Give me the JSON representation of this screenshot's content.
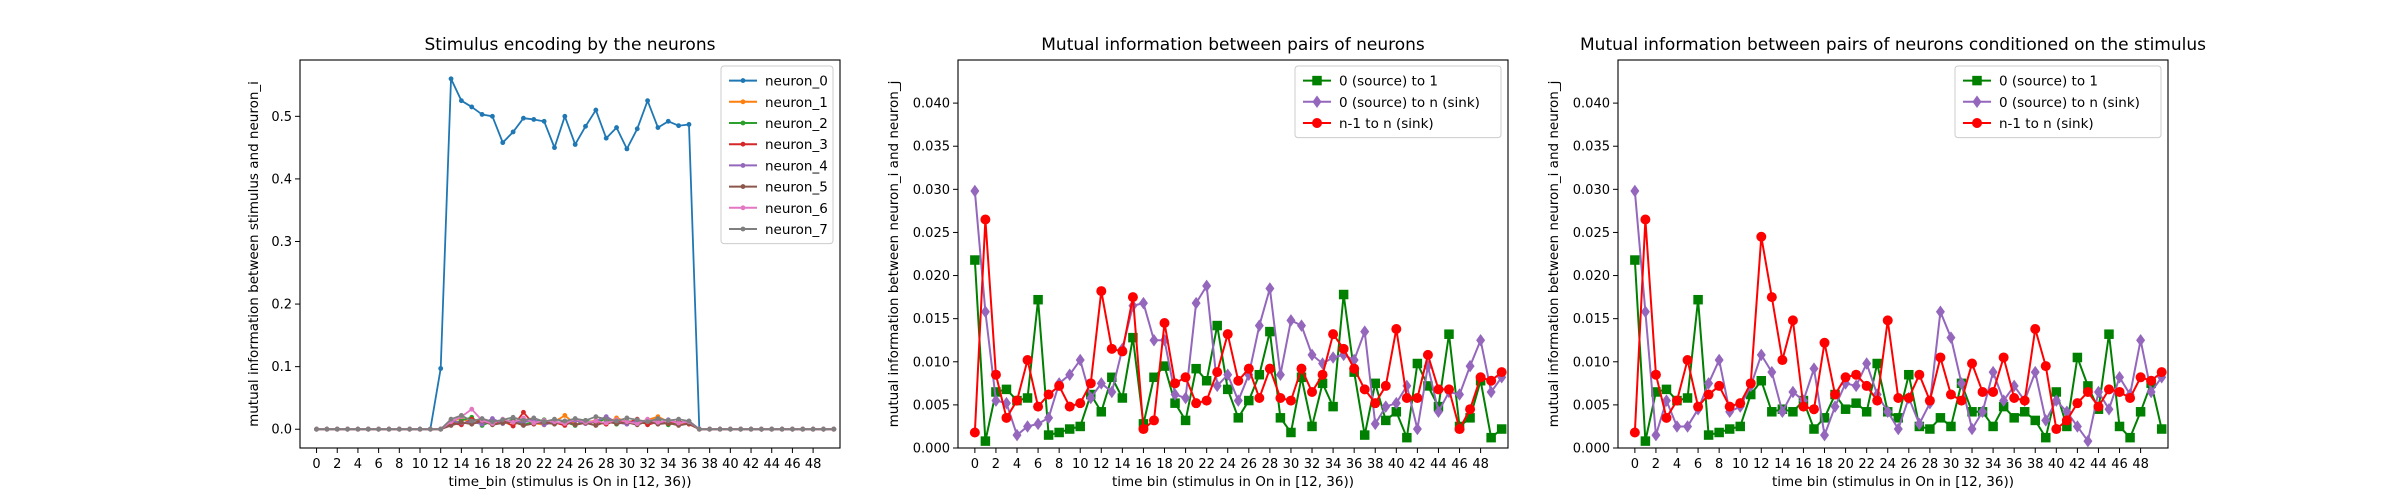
{
  "chart_data": [
    {
      "type": "line",
      "title": "Stimulus encoding by the neurons",
      "xlabel": "time_bin (stimulus is On in [12, 36))",
      "ylabel": "mutual information between stimulus and neuron_i",
      "xlim": [
        -1.6,
        50.6
      ],
      "ylim": [
        -0.03,
        0.59
      ],
      "xticks": [
        0,
        2,
        4,
        6,
        8,
        10,
        12,
        14,
        16,
        18,
        20,
        22,
        24,
        26,
        28,
        30,
        32,
        34,
        36,
        38,
        40,
        42,
        44,
        46,
        48
      ],
      "xtick_labels": [
        "0",
        "2",
        "4",
        "6",
        "8",
        "10",
        "12",
        "14",
        "16",
        "18",
        "20",
        "22",
        "24",
        "26",
        "28",
        "30",
        "32",
        "34",
        "36",
        "38",
        "40",
        "42",
        "44",
        "46",
        "48"
      ],
      "yticks": [
        0.0,
        0.1,
        0.2,
        0.3,
        0.4,
        0.5
      ],
      "ytick_labels": [
        "0.0",
        "0.1",
        "0.2",
        "0.3",
        "0.4",
        "0.5"
      ],
      "legend": "upper right",
      "grid": false,
      "series": [
        {
          "name": "neuron_0",
          "color": "#1f77b4",
          "marker": "dot",
          "values": [
            0,
            0,
            0,
            0,
            0,
            0,
            0,
            0,
            0,
            0,
            0,
            0,
            0.097,
            0.56,
            0.525,
            0.515,
            0.503,
            0.5,
            0.458,
            0.475,
            0.497,
            0.495,
            0.492,
            0.45,
            0.5,
            0.455,
            0.484,
            0.51,
            0.465,
            0.482,
            0.448,
            0.48,
            0.525,
            0.482,
            0.492,
            0.485,
            0.487,
            0,
            0,
            0,
            0,
            0,
            0,
            0,
            0,
            0,
            0,
            0,
            0,
            0,
            0
          ]
        },
        {
          "name": "neuron_1",
          "color": "#ff7f0e",
          "marker": "dot",
          "values": [
            0,
            0,
            0,
            0,
            0,
            0,
            0,
            0,
            0,
            0,
            0,
            0,
            0,
            0.012,
            0.018,
            0.009,
            0.015,
            0.008,
            0.012,
            0.006,
            0.016,
            0.01,
            0.007,
            0.012,
            0.022,
            0.008,
            0.011,
            0.014,
            0.009,
            0.018,
            0.012,
            0.01,
            0.015,
            0.02,
            0.012,
            0.009,
            0.011,
            0,
            0,
            0,
            0,
            0,
            0,
            0,
            0,
            0,
            0,
            0,
            0,
            0,
            0
          ]
        },
        {
          "name": "neuron_2",
          "color": "#2ca02c",
          "marker": "dot",
          "values": [
            0,
            0,
            0,
            0,
            0,
            0,
            0,
            0,
            0,
            0,
            0,
            0,
            0,
            0.008,
            0.014,
            0.019,
            0.006,
            0.013,
            0.01,
            0.016,
            0.007,
            0.012,
            0.015,
            0.009,
            0.012,
            0.006,
            0.014,
            0.01,
            0.017,
            0.008,
            0.013,
            0.011,
            0.009,
            0.015,
            0.007,
            0.012,
            0.01,
            0,
            0,
            0,
            0,
            0,
            0,
            0,
            0,
            0,
            0,
            0,
            0,
            0,
            0
          ]
        },
        {
          "name": "neuron_3",
          "color": "#d62728",
          "marker": "dot",
          "values": [
            0,
            0,
            0,
            0,
            0,
            0,
            0,
            0,
            0,
            0,
            0,
            0,
            0,
            0.01,
            0.007,
            0.016,
            0.012,
            0.009,
            0.014,
            0.005,
            0.027,
            0.008,
            0.013,
            0.011,
            0.006,
            0.015,
            0.009,
            0.012,
            0.008,
            0.014,
            0.01,
            0.016,
            0.007,
            0.012,
            0.009,
            0.013,
            0.008,
            0,
            0,
            0,
            0,
            0,
            0,
            0,
            0,
            0,
            0,
            0,
            0,
            0,
            0
          ]
        },
        {
          "name": "neuron_4",
          "color": "#9467bd",
          "marker": "dot",
          "values": [
            0,
            0,
            0,
            0,
            0,
            0,
            0,
            0,
            0,
            0,
            0,
            0,
            0,
            0.014,
            0.01,
            0.012,
            0.008,
            0.017,
            0.009,
            0.013,
            0.011,
            0.015,
            0.007,
            0.012,
            0.01,
            0.014,
            0.009,
            0.013,
            0.02,
            0.011,
            0.008,
            0.014,
            0.012,
            0.009,
            0.015,
            0.01,
            0.013,
            0,
            0,
            0,
            0,
            0,
            0,
            0,
            0,
            0,
            0,
            0,
            0,
            0,
            0
          ]
        },
        {
          "name": "neuron_5",
          "color": "#8c564b",
          "marker": "dot",
          "values": [
            0,
            0,
            0,
            0,
            0,
            0,
            0,
            0,
            0,
            0,
            0,
            0,
            0,
            0.006,
            0.011,
            0.008,
            0.013,
            0.007,
            0.01,
            0.012,
            0.006,
            0.009,
            0.011,
            0.008,
            0.013,
            0.007,
            0.01,
            0.006,
            0.012,
            0.009,
            0.011,
            0.007,
            0.013,
            0.008,
            0.01,
            0.006,
            0.009,
            0,
            0,
            0,
            0,
            0,
            0,
            0,
            0,
            0,
            0,
            0,
            0,
            0,
            0
          ]
        },
        {
          "name": "neuron_6",
          "color": "#e377c2",
          "marker": "dot",
          "values": [
            0,
            0,
            0,
            0,
            0,
            0,
            0,
            0,
            0,
            0,
            0,
            0,
            0,
            0.012,
            0.02,
            0.032,
            0.014,
            0.009,
            0.016,
            0.011,
            0.018,
            0.01,
            0.014,
            0.012,
            0.009,
            0.016,
            0.011,
            0.013,
            0.01,
            0.015,
            0.012,
            0.009,
            0.016,
            0.011,
            0.014,
            0.01,
            0.012,
            0,
            0,
            0,
            0,
            0,
            0,
            0,
            0,
            0,
            0,
            0,
            0,
            0,
            0
          ]
        },
        {
          "name": "neuron_7",
          "color": "#7f7f7f",
          "marker": "dot",
          "values": [
            0,
            0,
            0,
            0,
            0,
            0,
            0,
            0,
            0,
            0,
            0,
            0,
            0,
            0.016,
            0.022,
            0.013,
            0.017,
            0.012,
            0.015,
            0.019,
            0.014,
            0.018,
            0.012,
            0.016,
            0.013,
            0.017,
            0.014,
            0.02,
            0.016,
            0.013,
            0.018,
            0.015,
            0.012,
            0.017,
            0.014,
            0.016,
            0.013,
            0,
            0,
            0,
            0,
            0,
            0,
            0,
            0,
            0,
            0,
            0,
            0,
            0,
            0
          ]
        }
      ]
    },
    {
      "type": "line",
      "title": "Mutual information between pairs of neurons",
      "xlabel": "time bin (stimulus in On in [12, 36))",
      "ylabel": "mutual information between neuron_i and neuron_j",
      "xlim": [
        -1.6,
        50.6
      ],
      "ylim": [
        0,
        0.045
      ],
      "xticks": [
        0,
        2,
        4,
        6,
        8,
        10,
        12,
        14,
        16,
        18,
        20,
        22,
        24,
        26,
        28,
        30,
        32,
        34,
        36,
        38,
        40,
        42,
        44,
        46,
        48
      ],
      "xtick_labels": [
        "0",
        "2",
        "4",
        "6",
        "8",
        "10",
        "12",
        "14",
        "16",
        "18",
        "20",
        "22",
        "24",
        "26",
        "28",
        "30",
        "32",
        "34",
        "36",
        "38",
        "40",
        "42",
        "44",
        "46",
        "48"
      ],
      "yticks": [
        0.0,
        0.005,
        0.01,
        0.015,
        0.02,
        0.025,
        0.03,
        0.035,
        0.04
      ],
      "ytick_labels": [
        "0.000",
        "0.005",
        "0.010",
        "0.015",
        "0.020",
        "0.025",
        "0.030",
        "0.035",
        "0.040"
      ],
      "legend": "upper right",
      "grid": false,
      "series": [
        {
          "name": "0 (source) to 1",
          "color": "#008000",
          "marker": "square",
          "values": [
            0.0218,
            0.0008,
            0.0065,
            0.0068,
            0.0055,
            0.0058,
            0.0172,
            0.0015,
            0.0018,
            0.0022,
            0.0025,
            0.0062,
            0.0042,
            0.0082,
            0.0058,
            0.0128,
            0.0028,
            0.0082,
            0.0095,
            0.0052,
            0.0032,
            0.0092,
            0.0078,
            0.0142,
            0.0068,
            0.0035,
            0.0055,
            0.0085,
            0.0135,
            0.0035,
            0.0018,
            0.0082,
            0.0025,
            0.0075,
            0.0048,
            0.0178,
            0.0088,
            0.0015,
            0.0075,
            0.0032,
            0.0042,
            0.0012,
            0.0098,
            0.0072,
            0.0048,
            0.0132,
            0.0025,
            0.0035,
            0.0078,
            0.0012,
            0.0022
          ]
        },
        {
          "name": "0 (source) to n (sink)",
          "color": "#9467bd",
          "marker": "diamond",
          "values": [
            0.0298,
            0.0158,
            0.0055,
            0.0052,
            0.0015,
            0.0025,
            0.0028,
            0.0035,
            0.0075,
            0.0085,
            0.0102,
            0.0058,
            0.0075,
            0.0065,
            0.0115,
            0.0165,
            0.0168,
            0.0125,
            0.0125,
            0.0062,
            0.0058,
            0.0168,
            0.0188,
            0.0072,
            0.0085,
            0.0055,
            0.0085,
            0.0142,
            0.0185,
            0.0085,
            0.0148,
            0.0142,
            0.0108,
            0.0098,
            0.0105,
            0.0108,
            0.0102,
            0.0135,
            0.0028,
            0.0048,
            0.0052,
            0.0072,
            0.0022,
            0.0095,
            0.0042,
            0.0065,
            0.0062,
            0.0095,
            0.0125,
            0.0065,
            0.0082
          ]
        },
        {
          "name": "n-1 to n (sink)",
          "color": "#ff0000",
          "marker": "circle",
          "values": [
            0.0018,
            0.0265,
            0.0085,
            0.0035,
            0.0055,
            0.0102,
            0.0048,
            0.0062,
            0.0072,
            0.0048,
            0.0052,
            0.0075,
            0.0182,
            0.0115,
            0.0112,
            0.0175,
            0.0022,
            0.0032,
            0.0145,
            0.0075,
            0.0082,
            0.0052,
            0.0055,
            0.0088,
            0.0132,
            0.0078,
            0.0092,
            0.0058,
            0.0092,
            0.0058,
            0.0055,
            0.0092,
            0.0065,
            0.0085,
            0.0132,
            0.0115,
            0.0092,
            0.0068,
            0.0052,
            0.0072,
            0.0138,
            0.0058,
            0.0058,
            0.0108,
            0.0068,
            0.0068,
            0.0022,
            0.0045,
            0.0082,
            0.0078,
            0.0088
          ]
        }
      ]
    },
    {
      "type": "line",
      "title": "Mutual information between pairs of neurons conditioned on the stimulus",
      "xlabel": "time bin (stimulus in On in [12, 36))",
      "ylabel": "mutual information between neuron_i and neuron_j",
      "xlim": [
        -1.6,
        50.6
      ],
      "ylim": [
        0,
        0.045
      ],
      "xticks": [
        0,
        2,
        4,
        6,
        8,
        10,
        12,
        14,
        16,
        18,
        20,
        22,
        24,
        26,
        28,
        30,
        32,
        34,
        36,
        38,
        40,
        42,
        44,
        46,
        48
      ],
      "xtick_labels": [
        "0",
        "2",
        "4",
        "6",
        "8",
        "10",
        "12",
        "14",
        "16",
        "18",
        "20",
        "22",
        "24",
        "26",
        "28",
        "30",
        "32",
        "34",
        "36",
        "38",
        "40",
        "42",
        "44",
        "46",
        "48"
      ],
      "yticks": [
        0.0,
        0.005,
        0.01,
        0.015,
        0.02,
        0.025,
        0.03,
        0.035,
        0.04
      ],
      "ytick_labels": [
        "0.000",
        "0.005",
        "0.010",
        "0.015",
        "0.020",
        "0.025",
        "0.030",
        "0.035",
        "0.040"
      ],
      "legend": "upper right",
      "grid": false,
      "series": [
        {
          "name": "0 (source) to 1",
          "color": "#008000",
          "marker": "square",
          "values": [
            0.0218,
            0.0008,
            0.0065,
            0.0068,
            0.0055,
            0.0058,
            0.0172,
            0.0015,
            0.0018,
            0.0022,
            0.0025,
            0.0062,
            0.0078,
            0.0042,
            0.0045,
            0.0042,
            0.0055,
            0.0022,
            0.0035,
            0.0062,
            0.0045,
            0.0052,
            0.0042,
            0.0098,
            0.0042,
            0.0035,
            0.0085,
            0.0025,
            0.0022,
            0.0035,
            0.0025,
            0.0075,
            0.0042,
            0.0042,
            0.0025,
            0.0048,
            0.0035,
            0.0042,
            0.0032,
            0.0012,
            0.0065,
            0.0025,
            0.0105,
            0.0072,
            0.0045,
            0.0132,
            0.0025,
            0.0012,
            0.0042,
            0.0075,
            0.0022
          ]
        },
        {
          "name": "0 (source) to n (sink)",
          "color": "#9467bd",
          "marker": "diamond",
          "values": [
            0.0298,
            0.0158,
            0.0015,
            0.0055,
            0.0025,
            0.0025,
            0.0045,
            0.0075,
            0.0102,
            0.0042,
            0.0048,
            0.0072,
            0.0108,
            0.0088,
            0.0042,
            0.0065,
            0.0055,
            0.0092,
            0.0015,
            0.0048,
            0.0075,
            0.0072,
            0.0098,
            0.0062,
            0.0042,
            0.0022,
            0.0058,
            0.0028,
            0.0052,
            0.0158,
            0.0128,
            0.0075,
            0.0022,
            0.0042,
            0.0088,
            0.0055,
            0.0072,
            0.0055,
            0.0088,
            0.0032,
            0.0055,
            0.0042,
            0.0025,
            0.0008,
            0.0065,
            0.0045,
            0.0082,
            0.0062,
            0.0125,
            0.0065,
            0.0082
          ]
        },
        {
          "name": "n-1 to n (sink)",
          "color": "#ff0000",
          "marker": "circle",
          "values": [
            0.0018,
            0.0265,
            0.0085,
            0.0035,
            0.0055,
            0.0102,
            0.0048,
            0.0062,
            0.0072,
            0.0048,
            0.0052,
            0.0075,
            0.0245,
            0.0175,
            0.0102,
            0.0148,
            0.0048,
            0.0045,
            0.0122,
            0.0062,
            0.0082,
            0.0085,
            0.0072,
            0.0055,
            0.0148,
            0.0058,
            0.0058,
            0.0085,
            0.0055,
            0.0105,
            0.0062,
            0.0055,
            0.0098,
            0.0065,
            0.0065,
            0.0105,
            0.0058,
            0.0055,
            0.0138,
            0.0095,
            0.0022,
            0.0032,
            0.0052,
            0.0065,
            0.0048,
            0.0068,
            0.0065,
            0.0058,
            0.0082,
            0.0078,
            0.0088
          ]
        }
      ]
    }
  ]
}
